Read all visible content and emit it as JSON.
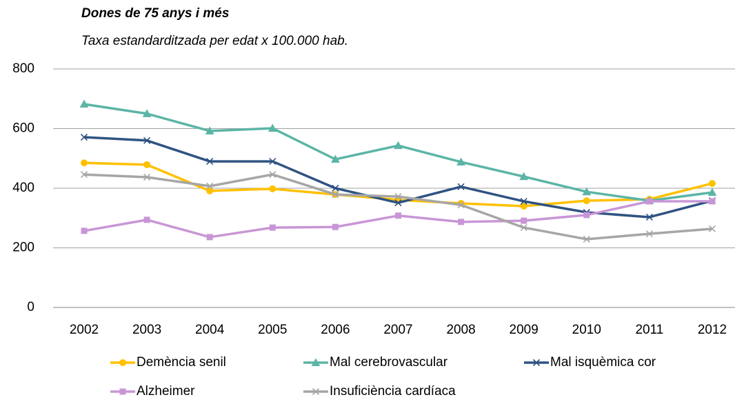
{
  "chart_data": {
    "type": "line",
    "title": "Dones de 75 anys i més",
    "subtitle": "Taxa estandarditzada per edat x 100.000 hab.",
    "categories": [
      "2002",
      "2003",
      "2004",
      "2005",
      "2006",
      "2007",
      "2008",
      "2009",
      "2010",
      "2011",
      "2012"
    ],
    "ylim": [
      0,
      800
    ],
    "yticks": [
      0,
      200,
      400,
      600,
      800
    ],
    "grid": true,
    "series": [
      {
        "name": "Demència senil",
        "color": "#ffc000",
        "marker": "circle",
        "values": [
          485,
          479,
          391,
          398,
          379,
          361,
          349,
          340,
          358,
          363,
          416
        ]
      },
      {
        "name": "Mal cerebrovascular",
        "color": "#5bb5a6",
        "marker": "triangle",
        "values": [
          682,
          650,
          592,
          601,
          497,
          543,
          488,
          439,
          388,
          358,
          386
        ]
      },
      {
        "name": "Mal isquèmica cor",
        "color": "#2f5382",
        "marker": "x",
        "values": [
          571,
          560,
          490,
          490,
          400,
          351,
          405,
          356,
          319,
          303,
          358
        ]
      },
      {
        "name": "Alzheimer",
        "color": "#c896d6",
        "marker": "square",
        "values": [
          257,
          294,
          236,
          268,
          270,
          308,
          287,
          291,
          310,
          356,
          356
        ]
      },
      {
        "name": "Insuficiència cardíaca",
        "color": "#a6a6a6",
        "marker": "x",
        "values": [
          446,
          437,
          407,
          446,
          379,
          372,
          344,
          268,
          229,
          247,
          264
        ]
      }
    ]
  }
}
